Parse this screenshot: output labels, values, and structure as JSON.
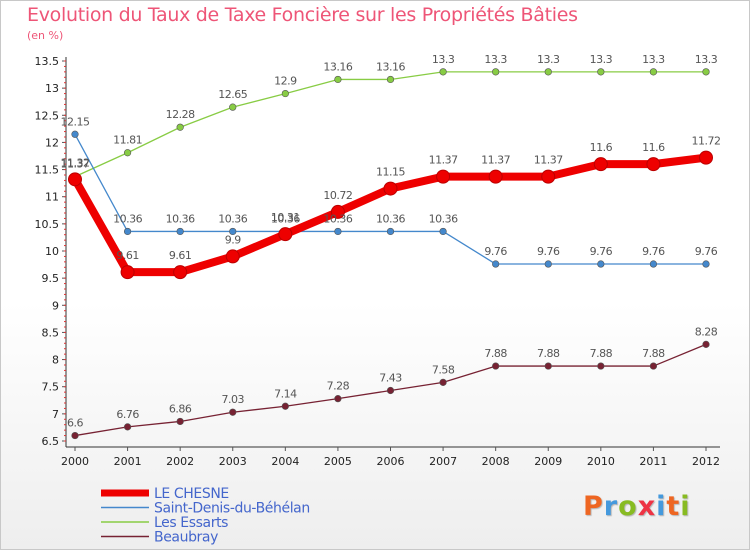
{
  "header": {
    "title": "Evolution du Taux de Taxe Foncière sur les Propriétés Bâties",
    "unit": "(en %)"
  },
  "logo": {
    "letters": [
      "P",
      "r",
      "o",
      "x",
      "i",
      "t",
      "i"
    ],
    "colors": [
      "#ee6622",
      "#4499dd",
      "#88bb22",
      "#ee3344",
      "#4499dd",
      "#ee6622",
      "#88bb22"
    ]
  },
  "chart_data": {
    "type": "line",
    "title": "Evolution du Taux de Taxe Foncière sur les Propriétés Bâties",
    "ylabel": "(en %)",
    "xlabel": "",
    "x": [
      "2000",
      "2001",
      "2002",
      "2003",
      "2004",
      "2005",
      "2006",
      "2007",
      "2008",
      "2009",
      "2010",
      "2011",
      "2012"
    ],
    "ylim": [
      6.5,
      13.5
    ],
    "yticks": [
      "6.5",
      "7",
      "7.5",
      "8",
      "8.5",
      "9",
      "9.5",
      "10",
      "10.5",
      "11",
      "11.5",
      "12",
      "12.5",
      "13",
      "13.5"
    ],
    "grid": false,
    "legend_position": "bottom-left",
    "series": [
      {
        "name": "Beaubray",
        "color": "#772233",
        "values": [
          6.6,
          6.76,
          6.86,
          7.03,
          7.14,
          7.28,
          7.43,
          7.58,
          7.88,
          7.88,
          7.88,
          7.88,
          8.28
        ],
        "labels": [
          "6.6",
          "6.76",
          "6.86",
          "7.03",
          "7.14",
          "7.28",
          "7.43",
          "7.58",
          "7.88",
          "7.88",
          "7.88",
          "7.88",
          "8.28"
        ]
      },
      {
        "name": "Les Essarts",
        "color": "#88cc44",
        "values": [
          11.37,
          11.81,
          12.28,
          12.65,
          12.9,
          13.16,
          13.16,
          13.3,
          13.3,
          13.3,
          13.3,
          13.3,
          13.3
        ],
        "labels": [
          "11.37",
          "11.81",
          "12.28",
          "12.65",
          "12.9",
          "13.16",
          "13.16",
          "13.3",
          "13.3",
          "13.3",
          "13.3",
          "13.3",
          "13.3"
        ]
      },
      {
        "name": "Saint-Denis-du-Béhélan",
        "color": "#4488cc",
        "values": [
          12.15,
          10.36,
          10.36,
          10.36,
          10.36,
          10.36,
          10.36,
          10.36,
          9.76,
          9.76,
          9.76,
          9.76,
          9.76
        ],
        "labels": [
          "12.15",
          "10.36",
          "10.36",
          "10.36",
          "10.36",
          "10.36",
          "10.36",
          "10.36",
          "9.76",
          "9.76",
          "9.76",
          "9.76",
          "9.76"
        ]
      },
      {
        "name": "LE CHESNE",
        "color": "#ee0000",
        "values": [
          11.32,
          9.61,
          9.61,
          9.9,
          10.31,
          10.72,
          11.15,
          11.37,
          11.37,
          11.37,
          11.6,
          11.6,
          11.72
        ],
        "labels": [
          "11.32",
          "9.61",
          "9.61",
          "9.9",
          "10.31",
          "10.72",
          "11.15",
          "11.37",
          "11.37",
          "11.37",
          "11.6",
          "11.6",
          "11.72"
        ]
      }
    ],
    "legend": [
      "LE CHESNE",
      "Saint-Denis-du-Béhélan",
      "Les Essarts",
      "Beaubray"
    ]
  }
}
